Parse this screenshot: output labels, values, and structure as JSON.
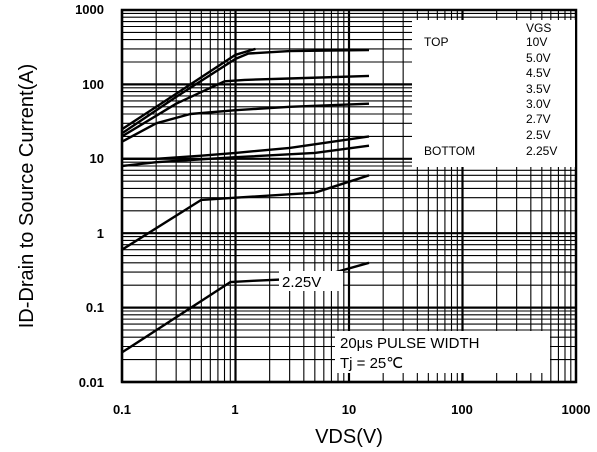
{
  "chart_data": {
    "type": "line",
    "title": "",
    "xlabel": "VDS(V)",
    "ylabel": "ID-Drain to Source Current(A)",
    "x_scale": "log",
    "y_scale": "log",
    "xlim": [
      0.1,
      1000
    ],
    "ylim": [
      0.01,
      1000
    ],
    "x_ticks": [
      "0.1",
      "1",
      "10",
      "100",
      "1000"
    ],
    "y_ticks": [
      "0.01",
      "0.1",
      "1",
      "10",
      "100",
      "1000"
    ],
    "grid": true,
    "legend": {
      "placement": "top-right",
      "header": "VGS",
      "top_label": "TOP",
      "bottom_label": "BOTTOM",
      "entries": [
        "10V",
        "5.0V",
        "4.5V",
        "3.5V",
        "3.0V",
        "2.7V",
        "2.5V",
        "2.25V"
      ]
    },
    "annotations": {
      "curve_label": "2.25V",
      "pulse_width": "20μs PULSE WIDTH",
      "tj": "Tj = 25℃"
    },
    "series": [
      {
        "name": "10V",
        "x": [
          0.1,
          0.3,
          1,
          1.5
        ],
        "y": [
          25,
          75,
          250,
          300
        ]
      },
      {
        "name": "5.0V",
        "x": [
          0.1,
          0.3,
          1,
          1.3,
          3,
          15
        ],
        "y": [
          22,
          68,
          220,
          260,
          280,
          290
        ]
      },
      {
        "name": "4.5V",
        "x": [
          0.1,
          0.3,
          0.8,
          1.2,
          3,
          15
        ],
        "y": [
          20,
          55,
          110,
          115,
          120,
          130
        ]
      },
      {
        "name": "3.5V",
        "x": [
          0.1,
          0.2,
          0.4,
          1,
          3,
          15
        ],
        "y": [
          17,
          30,
          40,
          45,
          50,
          55
        ]
      },
      {
        "name": "3.0V",
        "x": [
          0.1,
          0.2,
          0.5,
          1,
          3,
          15
        ],
        "y": [
          10,
          10,
          11,
          12,
          14,
          20
        ]
      },
      {
        "name": "2.7V",
        "x": [
          0.1,
          0.2,
          1,
          5,
          15
        ],
        "y": [
          8,
          9,
          10.5,
          12,
          15
        ]
      },
      {
        "name": "2.5V",
        "x": [
          0.1,
          0.5,
          1,
          5,
          15
        ],
        "y": [
          0.6,
          2.8,
          3,
          3.5,
          6
        ]
      },
      {
        "name": "2.25V",
        "x": [
          0.1,
          0.9,
          1.5,
          5,
          15
        ],
        "y": [
          0.025,
          0.22,
          0.23,
          0.25,
          0.4
        ]
      }
    ]
  }
}
